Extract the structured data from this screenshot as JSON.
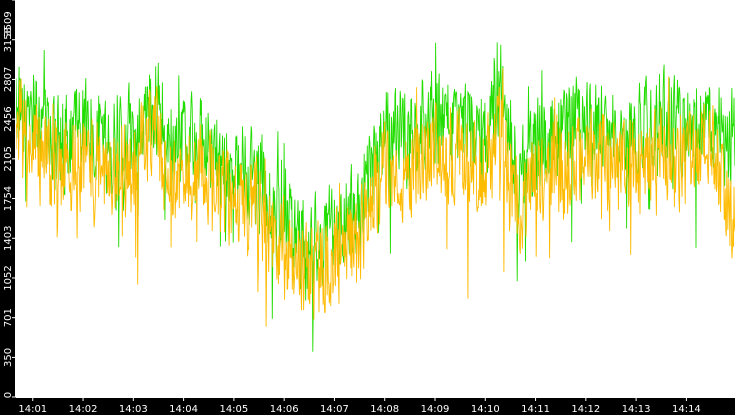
{
  "colors": {
    "background": "#ffffff",
    "frame": "#000000",
    "series_green": "#22dd00",
    "series_orange": "#ffbb00",
    "text": "#ffffff"
  },
  "chart_data": {
    "type": "line",
    "title": "",
    "xlabel": "",
    "ylabel": "",
    "ylim": [
      0,
      3509
    ],
    "y_ticks": [
      "0",
      "350",
      "701",
      "1052",
      "1403",
      "1754",
      "2105",
      "2456",
      "2807",
      "3158",
      "3509"
    ],
    "x_ticks": [
      "14:01",
      "14:02",
      "14:03",
      "14:04",
      "14:05",
      "14:06",
      "14:07",
      "14:08",
      "14:09",
      "14:10",
      "14:11",
      "14:12",
      "14:13",
      "14:14"
    ],
    "xlim": [
      "14:00:40",
      "14:14:58"
    ],
    "grid": false,
    "legend": "none",
    "series": [
      {
        "color": "#22dd00",
        "trend": [
          {
            "x": "14:00:40",
            "y": 2650
          },
          {
            "x": "14:01:00",
            "y": 2500
          },
          {
            "x": "14:01:30",
            "y": 2250
          },
          {
            "x": "14:02:00",
            "y": 2350
          },
          {
            "x": "14:02:30",
            "y": 2200
          },
          {
            "x": "14:03:00",
            "y": 2300
          },
          {
            "x": "14:03:25",
            "y": 2650
          },
          {
            "x": "14:03:50",
            "y": 2200
          },
          {
            "x": "14:04:20",
            "y": 2300
          },
          {
            "x": "14:04:50",
            "y": 2050
          },
          {
            "x": "14:05:30",
            "y": 1900
          },
          {
            "x": "14:06:00",
            "y": 1500
          },
          {
            "x": "14:06:30",
            "y": 1300
          },
          {
            "x": "14:07:00",
            "y": 1500
          },
          {
            "x": "14:07:30",
            "y": 1700
          },
          {
            "x": "14:08:00",
            "y": 2350
          },
          {
            "x": "14:08:30",
            "y": 2300
          },
          {
            "x": "14:09:00",
            "y": 2500
          },
          {
            "x": "14:09:30",
            "y": 2400
          },
          {
            "x": "14:10:00",
            "y": 2300
          },
          {
            "x": "14:10:20",
            "y": 2800
          },
          {
            "x": "14:10:40",
            "y": 1900
          },
          {
            "x": "14:11:00",
            "y": 2200
          },
          {
            "x": "14:11:30",
            "y": 2300
          },
          {
            "x": "14:12:00",
            "y": 2450
          },
          {
            "x": "14:12:30",
            "y": 2350
          },
          {
            "x": "14:13:00",
            "y": 2300
          },
          {
            "x": "14:13:30",
            "y": 2500
          },
          {
            "x": "14:14:00",
            "y": 2350
          },
          {
            "x": "14:14:30",
            "y": 2450
          },
          {
            "x": "14:14:58",
            "y": 2250
          }
        ]
      },
      {
        "color": "#ffbb00",
        "trend": [
          {
            "x": "14:00:40",
            "y": 2500
          },
          {
            "x": "14:01:00",
            "y": 2200
          },
          {
            "x": "14:01:30",
            "y": 2000
          },
          {
            "x": "14:02:00",
            "y": 2100
          },
          {
            "x": "14:02:30",
            "y": 1950
          },
          {
            "x": "14:03:00",
            "y": 2050
          },
          {
            "x": "14:03:25",
            "y": 2400
          },
          {
            "x": "14:03:50",
            "y": 1900
          },
          {
            "x": "14:04:20",
            "y": 2000
          },
          {
            "x": "14:04:50",
            "y": 1800
          },
          {
            "x": "14:05:30",
            "y": 1650
          },
          {
            "x": "14:06:00",
            "y": 1300
          },
          {
            "x": "14:06:30",
            "y": 1100
          },
          {
            "x": "14:07:00",
            "y": 1250
          },
          {
            "x": "14:07:30",
            "y": 1450
          },
          {
            "x": "14:08:00",
            "y": 2050
          },
          {
            "x": "14:08:30",
            "y": 2000
          },
          {
            "x": "14:09:00",
            "y": 2200
          },
          {
            "x": "14:09:30",
            "y": 2100
          },
          {
            "x": "14:10:00",
            "y": 2000
          },
          {
            "x": "14:10:20",
            "y": 2500
          },
          {
            "x": "14:10:40",
            "y": 1650
          },
          {
            "x": "14:11:00",
            "y": 1950
          },
          {
            "x": "14:11:30",
            "y": 2000
          },
          {
            "x": "14:12:00",
            "y": 2150
          },
          {
            "x": "14:12:30",
            "y": 2050
          },
          {
            "x": "14:13:00",
            "y": 2000
          },
          {
            "x": "14:13:30",
            "y": 2200
          },
          {
            "x": "14:14:00",
            "y": 2050
          },
          {
            "x": "14:14:30",
            "y": 2150
          },
          {
            "x": "14:14:58",
            "y": 1600
          }
        ]
      }
    ]
  }
}
